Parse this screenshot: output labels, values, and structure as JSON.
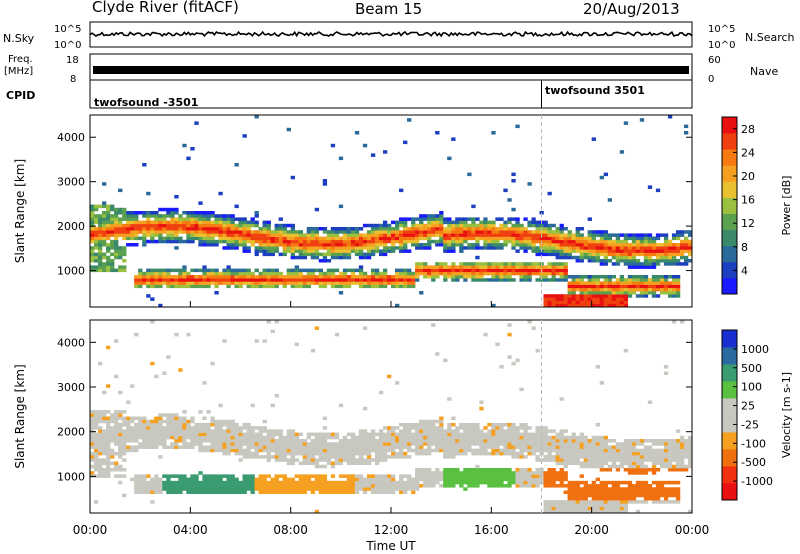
{
  "header": {
    "station": "Clyde River (fitACF)",
    "beam": "Beam 15",
    "date": "20/Aug/2013"
  },
  "strip_labels": {
    "nsky": "N.Sky",
    "nsky_top_tick": "10^5",
    "nsky_bottom_tick": "10^0",
    "nsearch": "N.Search",
    "nsearch_top_tick": "10^5",
    "nsearch_bottom_tick": "10^0",
    "freq": "Freq.",
    "freq_unit": "[MHz]",
    "freq_top_tick": "18",
    "freq_bottom_tick": "8",
    "nave": "Nave",
    "nave_top_tick": "60",
    "nave_bottom_tick": "0",
    "cpid": "CPID",
    "cpid_mode_1": "twofsound -3501",
    "cpid_mode_2": "twofsound 3501"
  },
  "chart_data": [
    {
      "type": "heatmap",
      "name": "power",
      "ylabel": "Slant Range [km]",
      "xlabel": "",
      "x_ticks": [
        "00:00",
        "04:00",
        "08:00",
        "12:00",
        "16:00",
        "20:00",
        "00:00"
      ],
      "y_ticks": [
        1000,
        2000,
        3000,
        4000
      ],
      "ylim": [
        180,
        4500
      ],
      "xlim_hours": [
        0,
        24
      ],
      "colorbar": {
        "label": "Power [dB]",
        "ticks": [
          "4",
          "8",
          "12",
          "16",
          "20",
          "24",
          "28"
        ],
        "range": [
          0,
          30
        ],
        "colors": [
          "#1a1aff",
          "#1c3fbf",
          "#2a6a9a",
          "#3a8a6a",
          "#5aa050",
          "#9ac040",
          "#e8c030",
          "#f5a020",
          "#f57a10",
          "#f04010",
          "#e81010"
        ]
      }
    },
    {
      "type": "heatmap",
      "name": "velocity",
      "ylabel": "Slant Range [km]",
      "xlabel": "Time UT",
      "x_ticks": [
        "00:00",
        "04:00",
        "08:00",
        "12:00",
        "16:00",
        "20:00",
        "00:00"
      ],
      "y_ticks": [
        1000,
        2000,
        3000,
        4000
      ],
      "ylim": [
        180,
        4500
      ],
      "xlim_hours": [
        0,
        24
      ],
      "colorbar": {
        "label": "Velocity [m s-1]",
        "ticks": [
          "1000",
          "500",
          "100",
          "25",
          "-25",
          "-100",
          "-500",
          "-1000"
        ],
        "colors": [
          "#1a2fd0",
          "#2a6aa0",
          "#3a9a70",
          "#5ac040",
          "#c8c8c0",
          "#c8c8c0",
          "#f5a020",
          "#f07010",
          "#f03010",
          "#e81010"
        ]
      }
    }
  ]
}
